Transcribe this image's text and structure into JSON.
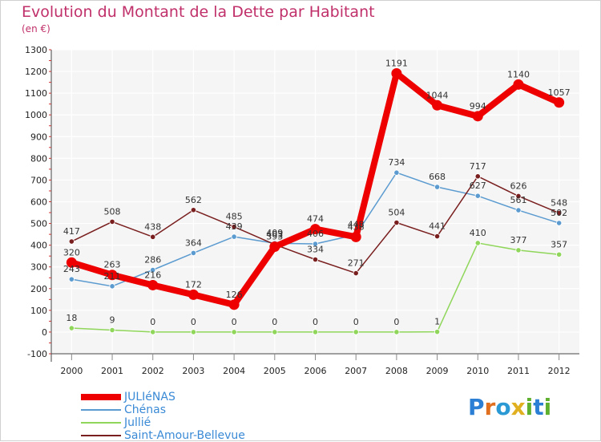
{
  "title": "Evolution du Montant de la Dette par Habitant",
  "subtitle": "(en €)",
  "logo": {
    "text": "Proxiti",
    "letters": [
      {
        "ch": "P",
        "color": "#2b7fd4"
      },
      {
        "ch": "r",
        "color": "#e07020"
      },
      {
        "ch": "o",
        "color": "#2b9ad4"
      },
      {
        "ch": "x",
        "color": "#e0b020"
      },
      {
        "ch": "i",
        "color": "#60b030"
      },
      {
        "ch": "t",
        "color": "#2b7fd4"
      },
      {
        "ch": "i",
        "color": "#60b030"
      }
    ]
  },
  "chart_data": {
    "type": "line",
    "title": "Evolution du Montant de la Dette par Habitant",
    "subtitle": "(en €)",
    "xlabel": "",
    "ylabel": "",
    "x": [
      "2000",
      "2001",
      "2002",
      "2003",
      "2004",
      "2005",
      "2006",
      "2007",
      "2008",
      "2009",
      "2010",
      "2011",
      "2012"
    ],
    "ylim": [
      -100,
      1300
    ],
    "yticks": [
      "-100",
      "0",
      "100",
      "200",
      "300",
      "400",
      "500",
      "600",
      "700",
      "800",
      "900",
      "1000",
      "1100",
      "1200",
      "1300"
    ],
    "grid": true,
    "legend_position": "bottom-left",
    "series": [
      {
        "name": "JULIéNAS",
        "color": "#ee0000",
        "values": [
          320,
          263,
          216,
          172,
          126,
          393,
          474,
          438,
          1191,
          1044,
          994,
          1140,
          1057
        ],
        "labels": [
          "320",
          "263",
          "216",
          "172",
          "126",
          "393",
          "474",
          "438",
          "1191",
          "1044",
          "994",
          "1140",
          "1057"
        ]
      },
      {
        "name": "Chénas",
        "color": "#5b9bd0",
        "values": [
          243,
          211,
          286,
          364,
          439,
          409,
          406,
          448,
          734,
          668,
          627,
          561,
          502
        ],
        "labels": [
          "243",
          "211",
          "286",
          "364",
          "439",
          "409",
          "406",
          "448",
          "734",
          "668",
          "627",
          "561",
          "502"
        ]
      },
      {
        "name": "Jullié",
        "color": "#8fd65a",
        "values": [
          18,
          9,
          0,
          0,
          0,
          0,
          0,
          0,
          0,
          1,
          410,
          377,
          357
        ],
        "labels": [
          "18",
          "9",
          "0",
          "0",
          "0",
          "0",
          "0",
          "0",
          "0",
          "1",
          "410",
          "377",
          "357"
        ]
      },
      {
        "name": "Saint-Amour-Bellevue",
        "color": "#7a1f1f",
        "values": [
          417,
          508,
          438,
          562,
          485,
          403,
          334,
          271,
          504,
          441,
          717,
          626,
          548
        ],
        "labels": [
          "417",
          "508",
          "438",
          "562",
          "485",
          "403",
          "334",
          "271",
          "504",
          "441",
          "717",
          "626",
          "548"
        ]
      }
    ]
  }
}
